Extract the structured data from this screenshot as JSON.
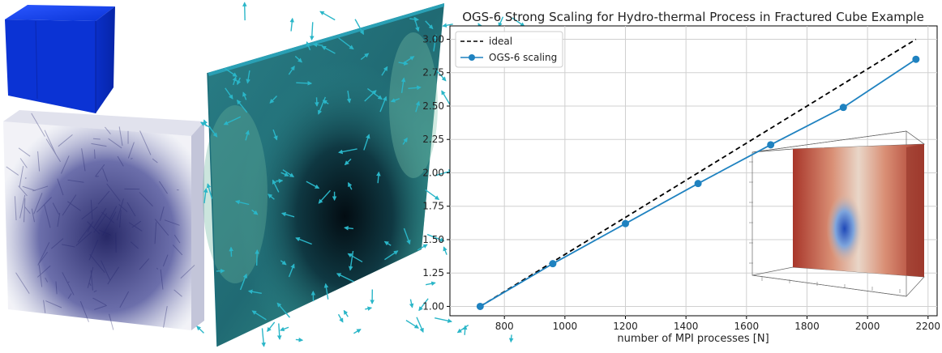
{
  "chart_data": {
    "type": "line",
    "title": "OGS-6 Strong Scaling for Hydro-thermal Process in Fractured Cube Example",
    "xlabel": "number of MPI processes [N]",
    "ylabel": "",
    "x": [
      720,
      960,
      1200,
      1440,
      1680,
      1920,
      2160
    ],
    "xlim": [
      620,
      2230
    ],
    "ylim": [
      0.93,
      3.1
    ],
    "xticks": [
      800,
      1000,
      1200,
      1400,
      1600,
      1800,
      2000,
      2200
    ],
    "yticks": [
      1.0,
      1.25,
      1.5,
      1.75,
      2.0,
      2.25,
      2.5,
      2.75,
      3.0
    ],
    "ytick_labels": [
      "1.00",
      "1.25",
      "1.50",
      "1.75",
      "2.00",
      "2.25",
      "2.50",
      "2.75",
      "3.00"
    ],
    "grid": true,
    "legend_position": "top-left",
    "series": [
      {
        "name": "ideal",
        "style": "dashed",
        "color": "#000000",
        "x": [
          720,
          2160
        ],
        "values": [
          1.0,
          3.0
        ]
      },
      {
        "name": "OGS-6 scaling",
        "style": "solid-marker",
        "color": "#1f82c0",
        "x": [
          720,
          960,
          1200,
          1440,
          1680,
          1920,
          2160
        ],
        "values": [
          1.0,
          1.32,
          1.62,
          1.92,
          2.21,
          2.49,
          2.85
        ]
      }
    ]
  },
  "colors": {
    "cube_blue": "#0b2fd6",
    "volume_navy": "#2b2d7a",
    "slice_teal": "#2f8a90",
    "arrow_cyan": "#2ab6c8",
    "inset_red": "#a8362a",
    "inset_blue": "#1f49b8"
  }
}
